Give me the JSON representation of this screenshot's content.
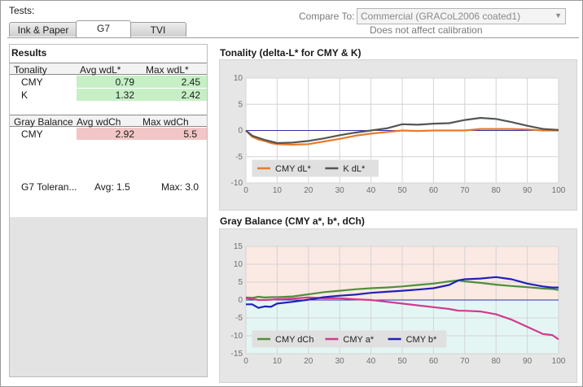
{
  "header": {
    "tests_label": "Tests:",
    "compare_label": "Compare To:",
    "compare_value": "Commercial (GRACoL2006 coated1)",
    "compare_note": "Does not affect calibration"
  },
  "tabs": [
    {
      "label": "Ink & Paper",
      "active": false
    },
    {
      "label": "G7",
      "active": true
    },
    {
      "label": "TVI",
      "active": false
    }
  ],
  "results": {
    "title": "Results",
    "tonality": {
      "headers": [
        "Tonality",
        "Avg wdL*",
        "Max wdL*"
      ],
      "rows": [
        {
          "name": "CMY",
          "avg": "0.79",
          "max": "2.45"
        },
        {
          "name": "K",
          "avg": "1.32",
          "max": "2.42"
        }
      ]
    },
    "gray_balance": {
      "headers": [
        "Gray Balance",
        "Avg wdCh",
        "Max wdCh"
      ],
      "rows": [
        {
          "name": "CMY",
          "avg": "2.92",
          "max": "5.5"
        }
      ]
    },
    "tolerance": {
      "label": "G7 Toleran...",
      "avg": "Avg: 1.5",
      "max": "Max: 3.0"
    },
    "colors": {
      "pass": "#c6efc6",
      "fail": "#f2c6c6"
    }
  },
  "chart_data": [
    {
      "type": "line",
      "title": "Tonality (delta-L* for CMY & K)",
      "xlim": [
        0,
        100
      ],
      "ylim": [
        -10,
        10
      ],
      "xticks": [
        0,
        10,
        20,
        30,
        40,
        50,
        60,
        70,
        80,
        90,
        100
      ],
      "yticks": [
        -10,
        -5,
        0,
        5,
        10
      ],
      "grid": true,
      "legend_position": "bottom-left",
      "x": [
        0,
        2,
        4,
        6,
        8,
        10,
        15,
        20,
        25,
        30,
        35,
        40,
        45,
        50,
        55,
        60,
        65,
        70,
        75,
        80,
        85,
        90,
        95,
        100
      ],
      "series": [
        {
          "name": "CMY dL*",
          "color": "#e87a2c",
          "values": [
            0,
            -1.2,
            -1.7,
            -2.0,
            -2.4,
            -2.6,
            -2.7,
            -2.6,
            -2.1,
            -1.6,
            -1.0,
            -0.6,
            -0.3,
            0.0,
            -0.1,
            0.0,
            0.0,
            0.0,
            0.3,
            0.3,
            0.3,
            0.2,
            0.0,
            0.0
          ]
        },
        {
          "name": "K dL*",
          "color": "#555555",
          "values": [
            0,
            -1.0,
            -1.4,
            -1.8,
            -2.1,
            -2.4,
            -2.3,
            -2.0,
            -1.5,
            -0.9,
            -0.4,
            0.0,
            0.4,
            1.2,
            1.1,
            1.3,
            1.4,
            2.0,
            2.4,
            2.2,
            1.6,
            0.9,
            0.3,
            0.1
          ]
        }
      ]
    },
    {
      "type": "line",
      "title": "Gray Balance (CMY a*, b*, dCh)",
      "xlim": [
        0,
        100
      ],
      "ylim": [
        -15,
        15
      ],
      "xticks": [
        0,
        10,
        20,
        30,
        40,
        50,
        60,
        70,
        80,
        90,
        100
      ],
      "yticks": [
        -15,
        -10,
        -5,
        0,
        5,
        10,
        15
      ],
      "grid": true,
      "legend_position": "bottom-left",
      "x": [
        0,
        2,
        4,
        6,
        8,
        10,
        15,
        20,
        25,
        30,
        35,
        40,
        45,
        50,
        55,
        60,
        65,
        68,
        70,
        75,
        80,
        85,
        90,
        95,
        98,
        100
      ],
      "series": [
        {
          "name": "CMY dCh",
          "color": "#4f8f3a",
          "values": [
            0.7,
            0.6,
            0.9,
            0.7,
            0.8,
            0.8,
            1.0,
            1.6,
            2.2,
            2.6,
            3.0,
            3.3,
            3.5,
            3.8,
            4.2,
            4.6,
            5.2,
            5.5,
            5.2,
            4.8,
            4.3,
            3.9,
            3.6,
            3.2,
            3.1,
            2.8
          ]
        },
        {
          "name": "CMY a*",
          "color": "#d23a8e",
          "values": [
            0.5,
            0.3,
            0.0,
            0.0,
            0.1,
            0.2,
            0.4,
            0.7,
            0.5,
            0.5,
            0.2,
            0.0,
            -0.5,
            -1.0,
            -1.5,
            -2.0,
            -2.5,
            -3.0,
            -3.0,
            -3.2,
            -4.0,
            -5.5,
            -7.5,
            -9.5,
            -9.8,
            -11.0
          ]
        },
        {
          "name": "CMY b*",
          "color": "#2121b8",
          "values": [
            -1.2,
            -1.2,
            -2.2,
            -1.8,
            -1.9,
            -1.0,
            -0.5,
            0.1,
            0.8,
            1.2,
            1.5,
            2.0,
            2.3,
            2.6,
            2.9,
            3.3,
            4.2,
            5.5,
            5.8,
            6.0,
            6.4,
            5.8,
            4.6,
            3.8,
            3.5,
            3.5
          ]
        }
      ]
    }
  ]
}
